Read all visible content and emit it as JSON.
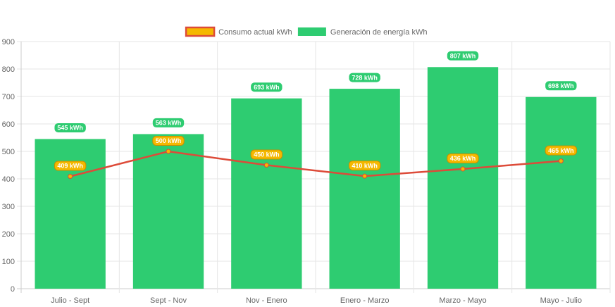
{
  "chart_data": {
    "type": "bar",
    "categories": [
      "Julio - Sept",
      "Sept - Nov",
      "Nov - Enero",
      "Enero - Marzo",
      "Marzo - Mayo",
      "Mayo - Julio"
    ],
    "series": [
      {
        "name": "Consumo actual kWh",
        "type": "line",
        "values": [
          409,
          500,
          450,
          410,
          436,
          465
        ],
        "labels": [
          "409 kWh",
          "500 kWh",
          "450 kWh",
          "410 kWh",
          "436 kWh",
          "465 kWh"
        ],
        "color": "#dd4b39",
        "point_color": "#f5b800"
      },
      {
        "name": "Generación de energía kWh",
        "type": "bar",
        "values": [
          545,
          563,
          693,
          728,
          807,
          698
        ],
        "labels": [
          "545 kWh",
          "563 kWh",
          "693 kWh",
          "728 kWh",
          "807 kWh",
          "698 kWh"
        ],
        "color": "#2ecc71"
      }
    ],
    "ylim": [
      0,
      900
    ],
    "yticks": [
      "0",
      "100",
      "200",
      "300",
      "400",
      "500",
      "600",
      "700",
      "800",
      "900"
    ],
    "grid": true,
    "legend_position": "top-center"
  }
}
